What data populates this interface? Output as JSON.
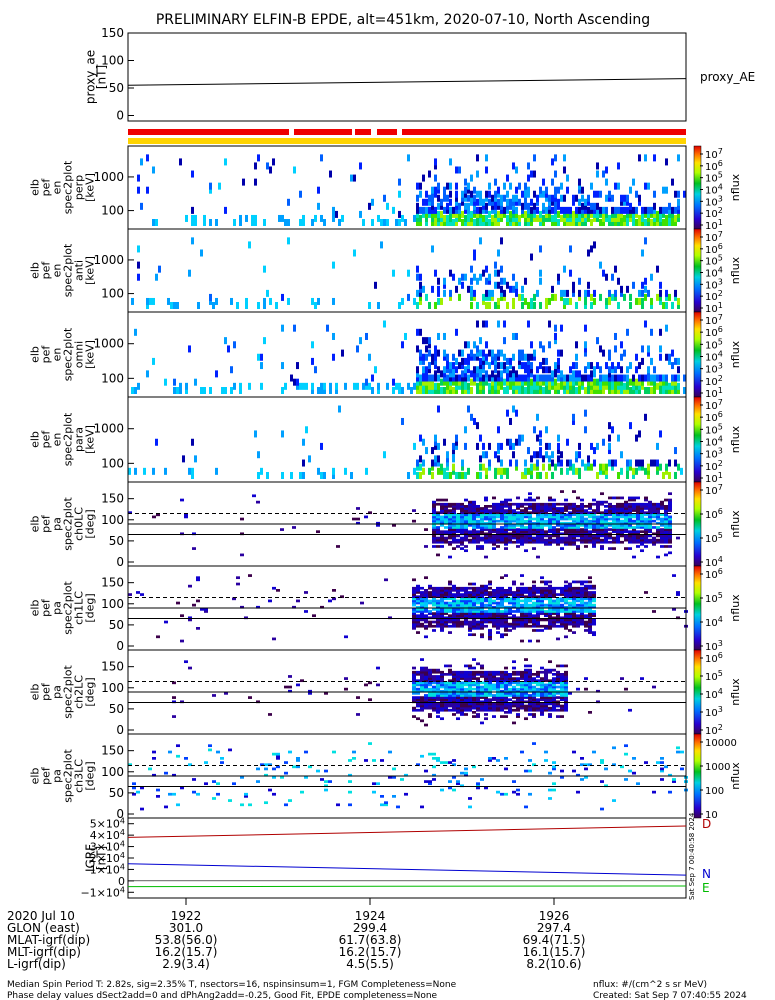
{
  "title": "PRELIMINARY ELFIN-B EPDE, alt=451km, 2020-07-10, North Ascending",
  "chart_data": [
    {
      "type": "line",
      "panel": "proxy_ae",
      "ylabel": "proxy_ae\n[nT]",
      "legend": "proxy_AE",
      "yticks": [
        "150",
        "100",
        "50",
        "0"
      ],
      "ylim": [
        -10,
        150
      ],
      "series": [
        {
          "values_start": 55,
          "values_end": 67
        }
      ]
    },
    {
      "type": "bar",
      "panel": "status-bars",
      "bars": [
        {
          "color": "#ee0000"
        },
        {
          "color": "#ffd400"
        }
      ]
    },
    {
      "type": "heatmap",
      "panel": "perp",
      "ylabel": "elb\npef\nen\nspec2plot\nperp\n[keV]",
      "yticks": [
        "1000",
        "100"
      ],
      "zlabel": "nflux",
      "cbticks": [
        "10^7",
        "10^6",
        "10^5",
        "10^4",
        "10^3",
        "10^2",
        "10^1"
      ]
    },
    {
      "type": "heatmap",
      "panel": "anti",
      "ylabel": "elb\npef\nen\nspec2plot\nanti\n[keV]",
      "yticks": [
        "1000",
        "100"
      ],
      "zlabel": "nflux",
      "cbticks": [
        "10^7",
        "10^6",
        "10^5",
        "10^4",
        "10^3",
        "10^2",
        "10^1"
      ]
    },
    {
      "type": "heatmap",
      "panel": "omni",
      "ylabel": "elb\npef\nen\nspec2plot\nomni\n[keV]",
      "yticks": [
        "1000",
        "100"
      ],
      "zlabel": "nflux",
      "cbticks": [
        "10^7",
        "10^6",
        "10^5",
        "10^4",
        "10^3",
        "10^2",
        "10^1"
      ]
    },
    {
      "type": "heatmap",
      "panel": "para",
      "ylabel": "elb\npef\nen\nspec2plot\npara\n[keV]",
      "yticks": [
        "1000",
        "100"
      ],
      "zlabel": "nflux",
      "cbticks": [
        "10^7",
        "10^6",
        "10^5",
        "10^4",
        "10^3",
        "10^2",
        "10^1"
      ]
    },
    {
      "type": "heatmap",
      "panel": "ch0LC",
      "ylabel": "elb\npef\npa\nspec2plot\nch0LC\n[deg]",
      "yticks": [
        "150",
        "100",
        "50",
        "0"
      ],
      "zlabel": "nflux",
      "cbticks": [
        "10^7",
        "10^6",
        "10^5",
        "10^4"
      ]
    },
    {
      "type": "heatmap",
      "panel": "ch1LC",
      "ylabel": "elb\npef\npa\nspec2plot\nch1LC\n[deg]",
      "yticks": [
        "150",
        "100",
        "50",
        "0"
      ],
      "zlabel": "nflux",
      "cbticks": [
        "10^6",
        "10^5",
        "10^4",
        "10^3"
      ]
    },
    {
      "type": "heatmap",
      "panel": "ch2LC",
      "ylabel": "elb\npef\npa\nspec2plot\nch2LC\n[deg]",
      "yticks": [
        "150",
        "100",
        "50",
        "0"
      ],
      "zlabel": "nflux",
      "cbticks": [
        "10^6",
        "10^5",
        "10^4",
        "10^3",
        "10^2"
      ]
    },
    {
      "type": "heatmap",
      "panel": "ch3LC",
      "ylabel": "elb\npef\npa\nspec2plot\nch3LC\n[deg]",
      "yticks": [
        "150",
        "100",
        "50",
        "0"
      ],
      "zlabel": "nflux",
      "cbticks": [
        "10000",
        "1000",
        "100",
        "10"
      ]
    },
    {
      "type": "line",
      "panel": "IGRF",
      "ylabel": "IGRF\n[nT]",
      "yticks": [
        "5×10^4",
        "4×10^4",
        "3×10^4",
        "2×10^4",
        "1×10^4",
        "0",
        "−1×10^4"
      ],
      "ylim": [
        -15000,
        55000
      ],
      "series": [
        {
          "name": "D",
          "color": "#b00000",
          "values_start": 38000,
          "values_end": 48000
        },
        {
          "name": "N",
          "color": "#0000d0",
          "values_start": 15000,
          "values_end": 5000
        },
        {
          "name": "E",
          "color": "#00bb00",
          "values_start": -5000,
          "values_end": -4500
        }
      ]
    }
  ],
  "side_stamp": "Sat Sep  7 00:40:58 2024",
  "xaxis": {
    "rows": [
      {
        "label": "2020 Jul 10",
        "values": [
          "1922",
          "1924",
          "1926"
        ]
      },
      {
        "label": "GLON (east)",
        "values": [
          "301.0",
          "299.4",
          "297.4"
        ]
      },
      {
        "label": "MLAT-igrf(dip)",
        "values": [
          "53.8(56.0)",
          "61.7(63.8)",
          "69.4(71.5)"
        ]
      },
      {
        "label": "MLT-igrf(dip)",
        "values": [
          "16.2(15.7)",
          "16.2(15.7)",
          "16.1(15.7)"
        ]
      },
      {
        "label": "L-igrf(dip)",
        "values": [
          "2.9(3.4)",
          "4.5(5.5)",
          "8.2(10.6)"
        ]
      }
    ]
  },
  "footer": {
    "line1": "Median Spin Period T: 2.82s, sig=2.35% T, nsectors=16, nspinsinsum=1, FGM Completeness=None",
    "line2": "Phase delay values dSect2add=0 and dPhAng2add=-0.25, Good Fit, EPDE completeness=None",
    "units": "nflux: #/(cm^2 s sr MeV)",
    "created": "Created: Sat Sep  7 07:40:55 2024"
  }
}
